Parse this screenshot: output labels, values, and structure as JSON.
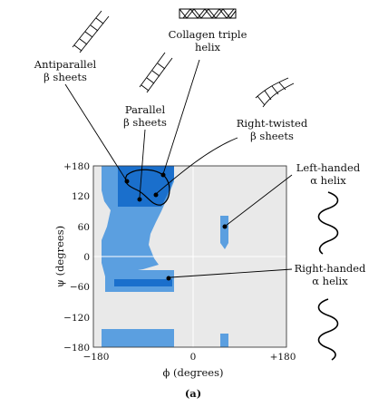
{
  "labels": {
    "collagen": [
      "Collagen triple",
      "helix"
    ],
    "antiparallel": [
      "Antiparallel",
      "β sheets"
    ],
    "parallel": [
      "Parallel",
      "β sheets"
    ],
    "right_twisted": [
      "Right-twisted",
      "β sheets"
    ],
    "left_handed": [
      "Left-handed",
      "α helix"
    ],
    "right_handed": [
      "Right-handed",
      "α helix"
    ]
  },
  "axes": {
    "xlabel": "ϕ (degrees)",
    "ylabel": "ψ (degrees)",
    "xticks": [
      "−180",
      "0",
      "+180"
    ],
    "yticks": [
      "+180",
      "120",
      "60",
      "0",
      "−60",
      "−120",
      "−180"
    ]
  },
  "caption": "(a)",
  "colors": {
    "background": "#e9e9e9",
    "allowed": "#5b9fe0",
    "core": "#1a6fcc",
    "outline": "#000000"
  },
  "icons": [
    "ladder-icon",
    "triple-helix-icon",
    "alpha-helix-icon"
  ]
}
